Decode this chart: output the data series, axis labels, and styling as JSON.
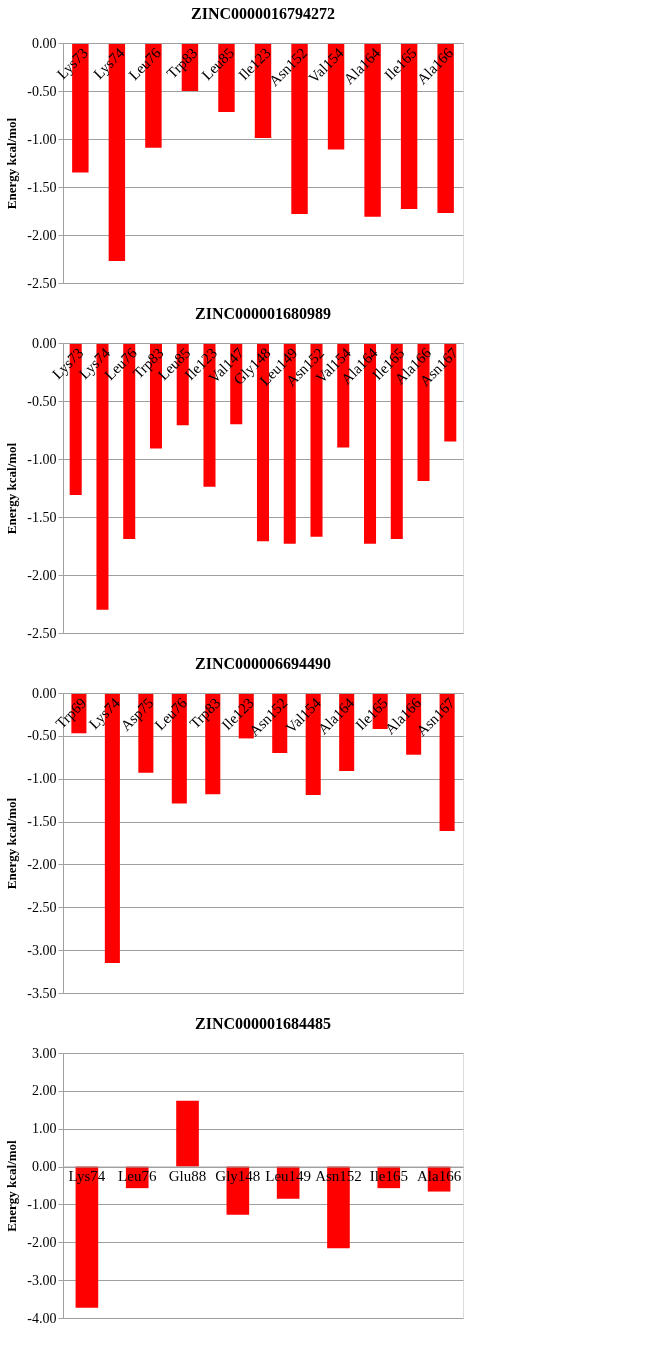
{
  "chart_data": [
    {
      "type": "bar",
      "title": "ZINC0000016794272",
      "ylabel": "Energy kcal/mol",
      "grid": "y",
      "categories": [
        "Lys73",
        "Lys74",
        "Leu76",
        "Trp83",
        "Leu85",
        "Ile123",
        "Asn152",
        "Val154",
        "Ala164",
        "Ile165",
        "Ala166"
      ],
      "values": [
        -1.35,
        -2.27,
        -1.09,
        -0.5,
        -0.72,
        -0.99,
        -1.78,
        -1.11,
        -1.81,
        -1.73,
        -1.77
      ],
      "color": "#ff0000",
      "ylim": [
        -2.5,
        0
      ],
      "yticks": [
        {
          "value": 0,
          "label": "0.00"
        },
        {
          "value": -0.5,
          "label": "-0.50"
        },
        {
          "value": -1,
          "label": "-1.00"
        },
        {
          "value": -1.5,
          "label": "-1.50"
        },
        {
          "value": -2,
          "label": "-2.00"
        },
        {
          "value": -2.5,
          "label": "-2.50"
        }
      ]
    },
    {
      "type": "bar",
      "title": "ZINC000001680989",
      "ylabel": "Energy kcal/mol",
      "grid": "y",
      "categories": [
        "Lys73",
        "Lys74",
        "Leu76",
        "Trp83",
        "Leu85",
        "Ile123",
        "Val147",
        "Gly148",
        "Leu149",
        "Asn152",
        "Val154",
        "Ala164",
        "Ile165",
        "Ala166",
        "Asn167"
      ],
      "values": [
        -1.31,
        -2.3,
        -1.69,
        -0.91,
        -0.71,
        -1.24,
        -0.7,
        -1.71,
        -1.73,
        -1.67,
        -0.9,
        -1.73,
        -1.69,
        -1.19,
        -0.85
      ],
      "color": "#ff0000",
      "ylim": [
        -2.5,
        0
      ],
      "yticks": [
        {
          "value": 0,
          "label": "0.00"
        },
        {
          "value": -0.5,
          "label": "-0.50"
        },
        {
          "value": -1,
          "label": "-1.00"
        },
        {
          "value": -1.5,
          "label": "-1.50"
        },
        {
          "value": -2,
          "label": "-2.00"
        },
        {
          "value": -2.5,
          "label": "-2.50"
        }
      ]
    },
    {
      "type": "bar",
      "title": "ZINC000006694490",
      "ylabel": "Energy kcal/mol",
      "grid": "y",
      "categories": [
        "Trp69",
        "Lys74",
        "Asp75",
        "Leu76",
        "Trp83",
        "Ile123",
        "Asn152",
        "Val154",
        "Ala164",
        "Ile165",
        "Ala166",
        "Asn167"
      ],
      "values": [
        -0.47,
        -3.15,
        -0.93,
        -1.29,
        -1.18,
        -0.53,
        -0.7,
        -1.19,
        -0.91,
        -0.42,
        -0.72,
        -1.61
      ],
      "color": "#ff0000",
      "ylim": [
        -3.5,
        0
      ],
      "yticks": [
        {
          "value": 0,
          "label": "0.00"
        },
        {
          "value": -0.5,
          "label": "-0.50"
        },
        {
          "value": -1,
          "label": "-1.00"
        },
        {
          "value": -1.5,
          "label": "-1.50"
        },
        {
          "value": -2,
          "label": "-2.00"
        },
        {
          "value": -2.5,
          "label": "-2.50"
        },
        {
          "value": -3,
          "label": "-3.00"
        },
        {
          "value": -3.5,
          "label": "-3.50"
        }
      ]
    },
    {
      "type": "bar",
      "title": "ZINC000001684485",
      "ylabel": "Energy kcal/mol",
      "grid": "y",
      "categories": [
        "Lys74",
        "Leu76",
        "Glu88",
        "Gly148",
        "Leu149",
        "Asn152",
        "Ile165",
        "Ala166"
      ],
      "values": [
        -3.73,
        -0.57,
        1.74,
        -1.27,
        -0.85,
        -2.16,
        -0.57,
        -0.66
      ],
      "color": "#ff0000",
      "ylim": [
        -4,
        3
      ],
      "yticks": [
        {
          "value": 3,
          "label": "3.00"
        },
        {
          "value": 2,
          "label": "2.00"
        },
        {
          "value": 1,
          "label": "1.00"
        },
        {
          "value": 0,
          "label": "0.00"
        },
        {
          "value": -1,
          "label": "-1.00"
        },
        {
          "value": -2,
          "label": "-2.00"
        },
        {
          "value": -3,
          "label": "-3.00"
        },
        {
          "value": -4,
          "label": "-4.00"
        }
      ]
    }
  ]
}
